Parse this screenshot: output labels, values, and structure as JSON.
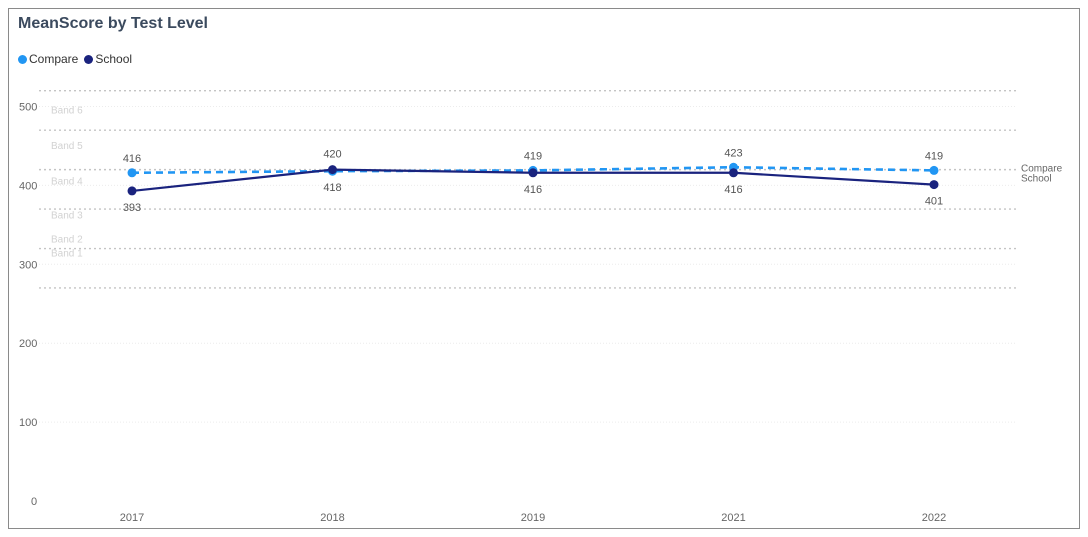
{
  "chart_data": {
    "type": "line",
    "title": "MeanScore by Test Level",
    "xlabel": "",
    "ylabel": "",
    "categories": [
      "2017",
      "2018",
      "2019",
      "2021",
      "2022"
    ],
    "ylim": [
      0,
      520
    ],
    "y_ticks": [
      "0",
      "100",
      "200",
      "300",
      "400",
      "500"
    ],
    "y_tick_values": [
      0,
      100,
      200,
      300,
      400,
      500
    ],
    "legend_position": "top-left",
    "series": [
      {
        "name": "Compare",
        "values": [
          416,
          418,
          419,
          423,
          419
        ],
        "color": "#2196F3",
        "dashed": true,
        "end_label": "Compare"
      },
      {
        "name": "School",
        "values": [
          393,
          420,
          416,
          416,
          401
        ],
        "color": "#1a237e",
        "dashed": false,
        "end_label": "School"
      }
    ],
    "bands": [
      {
        "label": "Band 1",
        "min": 270,
        "max": 320
      },
      {
        "label": "Band 2",
        "min": 320,
        "max": 370
      },
      {
        "label": "Band 3",
        "min": 370,
        "max": 420
      },
      {
        "label": "Band 4",
        "min": 420,
        "max": 470
      },
      {
        "label": "Band 5",
        "min": 470,
        "max": 520
      }
    ],
    "band_labels": [
      "Band 1",
      "Band 2",
      "Band 3",
      "Band 4",
      "Band 5",
      "Band 6"
    ],
    "band_label_values": [
      315,
      333,
      363,
      406,
      451,
      496
    ],
    "band_lines": [
      270,
      320,
      370,
      420,
      470,
      520
    ],
    "grid": true
  }
}
